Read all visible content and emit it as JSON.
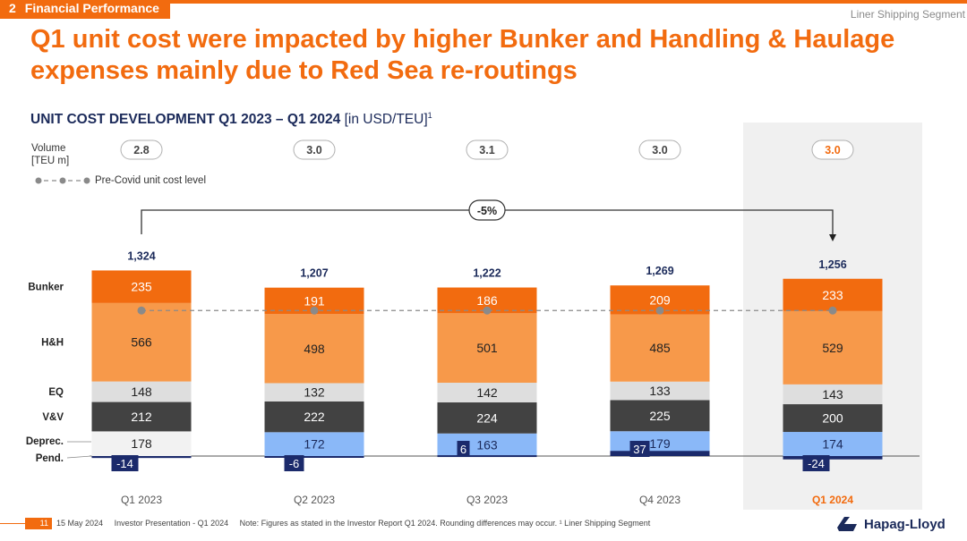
{
  "header": {
    "section_number": "2",
    "section_title": "Financial Performance",
    "segment": "Liner Shipping Segment",
    "headline": "Q1 unit cost were impacted by higher Bunker and Handling & Haulage expenses mainly due to Red Sea re-routings"
  },
  "subtitle": {
    "main": "UNIT COST DEVELOPMENT Q1 2023 – Q1 2024",
    "unit": "[in USD/TEU]",
    "footnote_mark": "1"
  },
  "volume_label": [
    "Volume",
    "[TEU m]"
  ],
  "legend_label": "Pre-Covid unit cost level",
  "change_label": "-5%",
  "footer": {
    "page": "11",
    "date": "15 May 2024",
    "doc": "Investor Presentation - Q1 2024",
    "note": "Note: Figures as stated in the Investor Report Q1 2024. Rounding differences may occur. ¹ Liner Shipping Segment",
    "logo": "Hapag-Lloyd"
  },
  "colors": {
    "Bunker": "#f26b0f",
    "H&H": "#f7994a",
    "EQ": "#dedede",
    "V&V": "#424242",
    "Deprec.": "#f2f2f2",
    "Deprec. highlighted": "#8ab8f8",
    "Pend.": "#1b2a6b",
    "accent": "#f26b0f",
    "dark_text": "#1b2a5a",
    "highlight_bg": "#f0f0f0"
  },
  "chart_data": {
    "type": "bar",
    "stacked": true,
    "categories": [
      "Q1 2023",
      "Q2 2023",
      "Q3 2023",
      "Q4 2023",
      "Q1 2024"
    ],
    "highlighted_category": "Q1 2024",
    "volume": [
      "2.8",
      "3.0",
      "3.1",
      "3.0",
      "3.0"
    ],
    "totals": [
      "1,324",
      "1,207",
      "1,222",
      "1,269",
      "1,256"
    ],
    "row_labels": [
      "Bunker",
      "H&H",
      "EQ",
      "V&V",
      "Deprec.",
      "Pend."
    ],
    "series": [
      {
        "name": "Pend.",
        "values": [
          -14,
          -6,
          6,
          37,
          -24
        ]
      },
      {
        "name": "Deprec.",
        "values": [
          178,
          172,
          163,
          179,
          174
        ]
      },
      {
        "name": "V&V",
        "values": [
          212,
          222,
          224,
          225,
          200
        ]
      },
      {
        "name": "EQ",
        "values": [
          148,
          132,
          142,
          133,
          143
        ]
      },
      {
        "name": "H&H",
        "values": [
          566,
          498,
          501,
          485,
          529
        ]
      },
      {
        "name": "Bunker",
        "values": [
          235,
          191,
          186,
          209,
          233
        ]
      }
    ],
    "pre_covid_level": 1050,
    "yrange": [
      -30,
      1400
    ]
  }
}
